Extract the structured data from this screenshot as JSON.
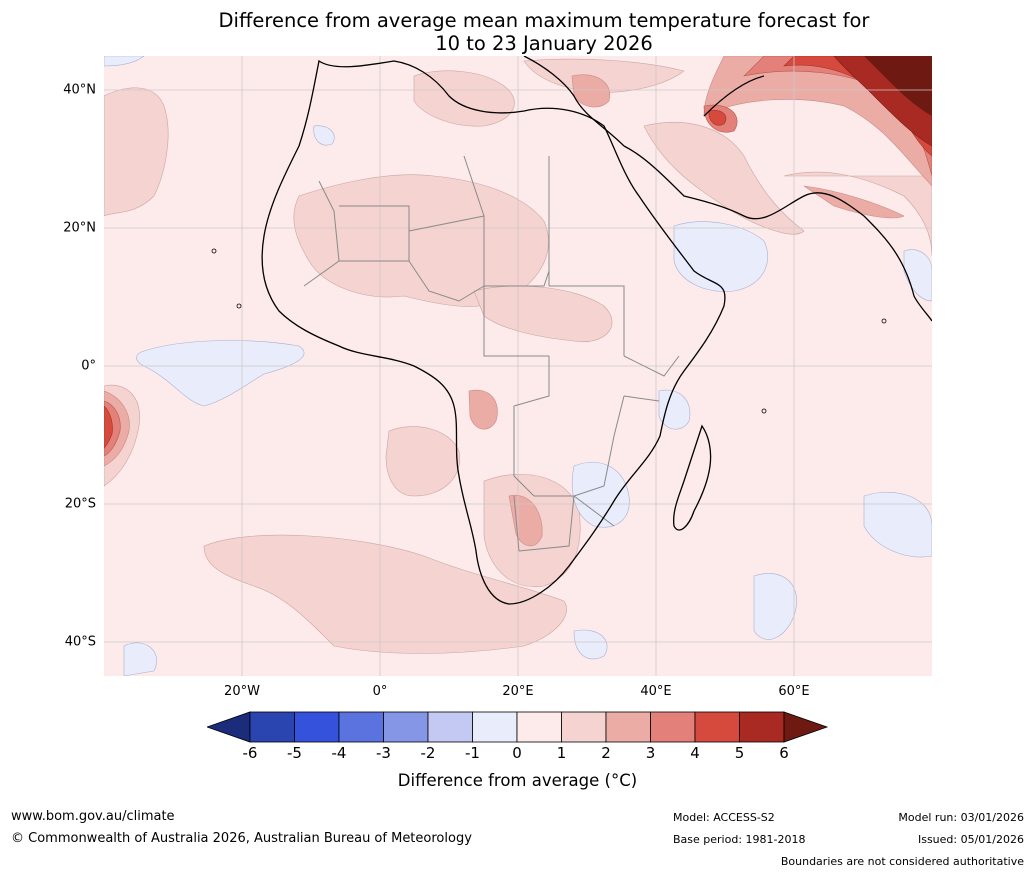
{
  "title": {
    "line1": "Difference from average mean maximum temperature forecast for",
    "line2": "10 to 23 January 2026"
  },
  "map": {
    "lat_labels": [
      "40°N",
      "20°N",
      "0°",
      "20°S",
      "40°S"
    ],
    "lon_labels": [
      "20°W",
      "0°",
      "20°E",
      "40°E",
      "60°E"
    ],
    "region": "Africa",
    "extent": {
      "lon_min": -40,
      "lon_max": 80,
      "lat_min": -45,
      "lat_max": 45
    }
  },
  "legend": {
    "ticks": [
      "-6",
      "-5",
      "-4",
      "-3",
      "-2",
      "-1",
      "0",
      "1",
      "2",
      "3",
      "4",
      "5",
      "6"
    ],
    "colors": [
      "#1b2d7a",
      "#2a44b0",
      "#3552dc",
      "#5a73df",
      "#8596e6",
      "#c3c9f2",
      "#e8ecfb",
      "#fcebea",
      "#f4d3d0",
      "#ebaca6",
      "#e38079",
      "#d64a3e",
      "#a92a22",
      "#6e1a13"
    ],
    "title": "Difference from average (°C)"
  },
  "footer": {
    "website": "www.bom.gov.au/climate",
    "copyright": "© Commonwealth of Australia 2026, Australian Bureau of Meteorology",
    "model": "Model: ACCESS-S2",
    "base_period": "Base period: 1981-2018",
    "model_run": "Model run: 03/01/2026",
    "issued": "Issued: 05/01/2026",
    "disclaimer": "Boundaries are not considered authoritative"
  }
}
